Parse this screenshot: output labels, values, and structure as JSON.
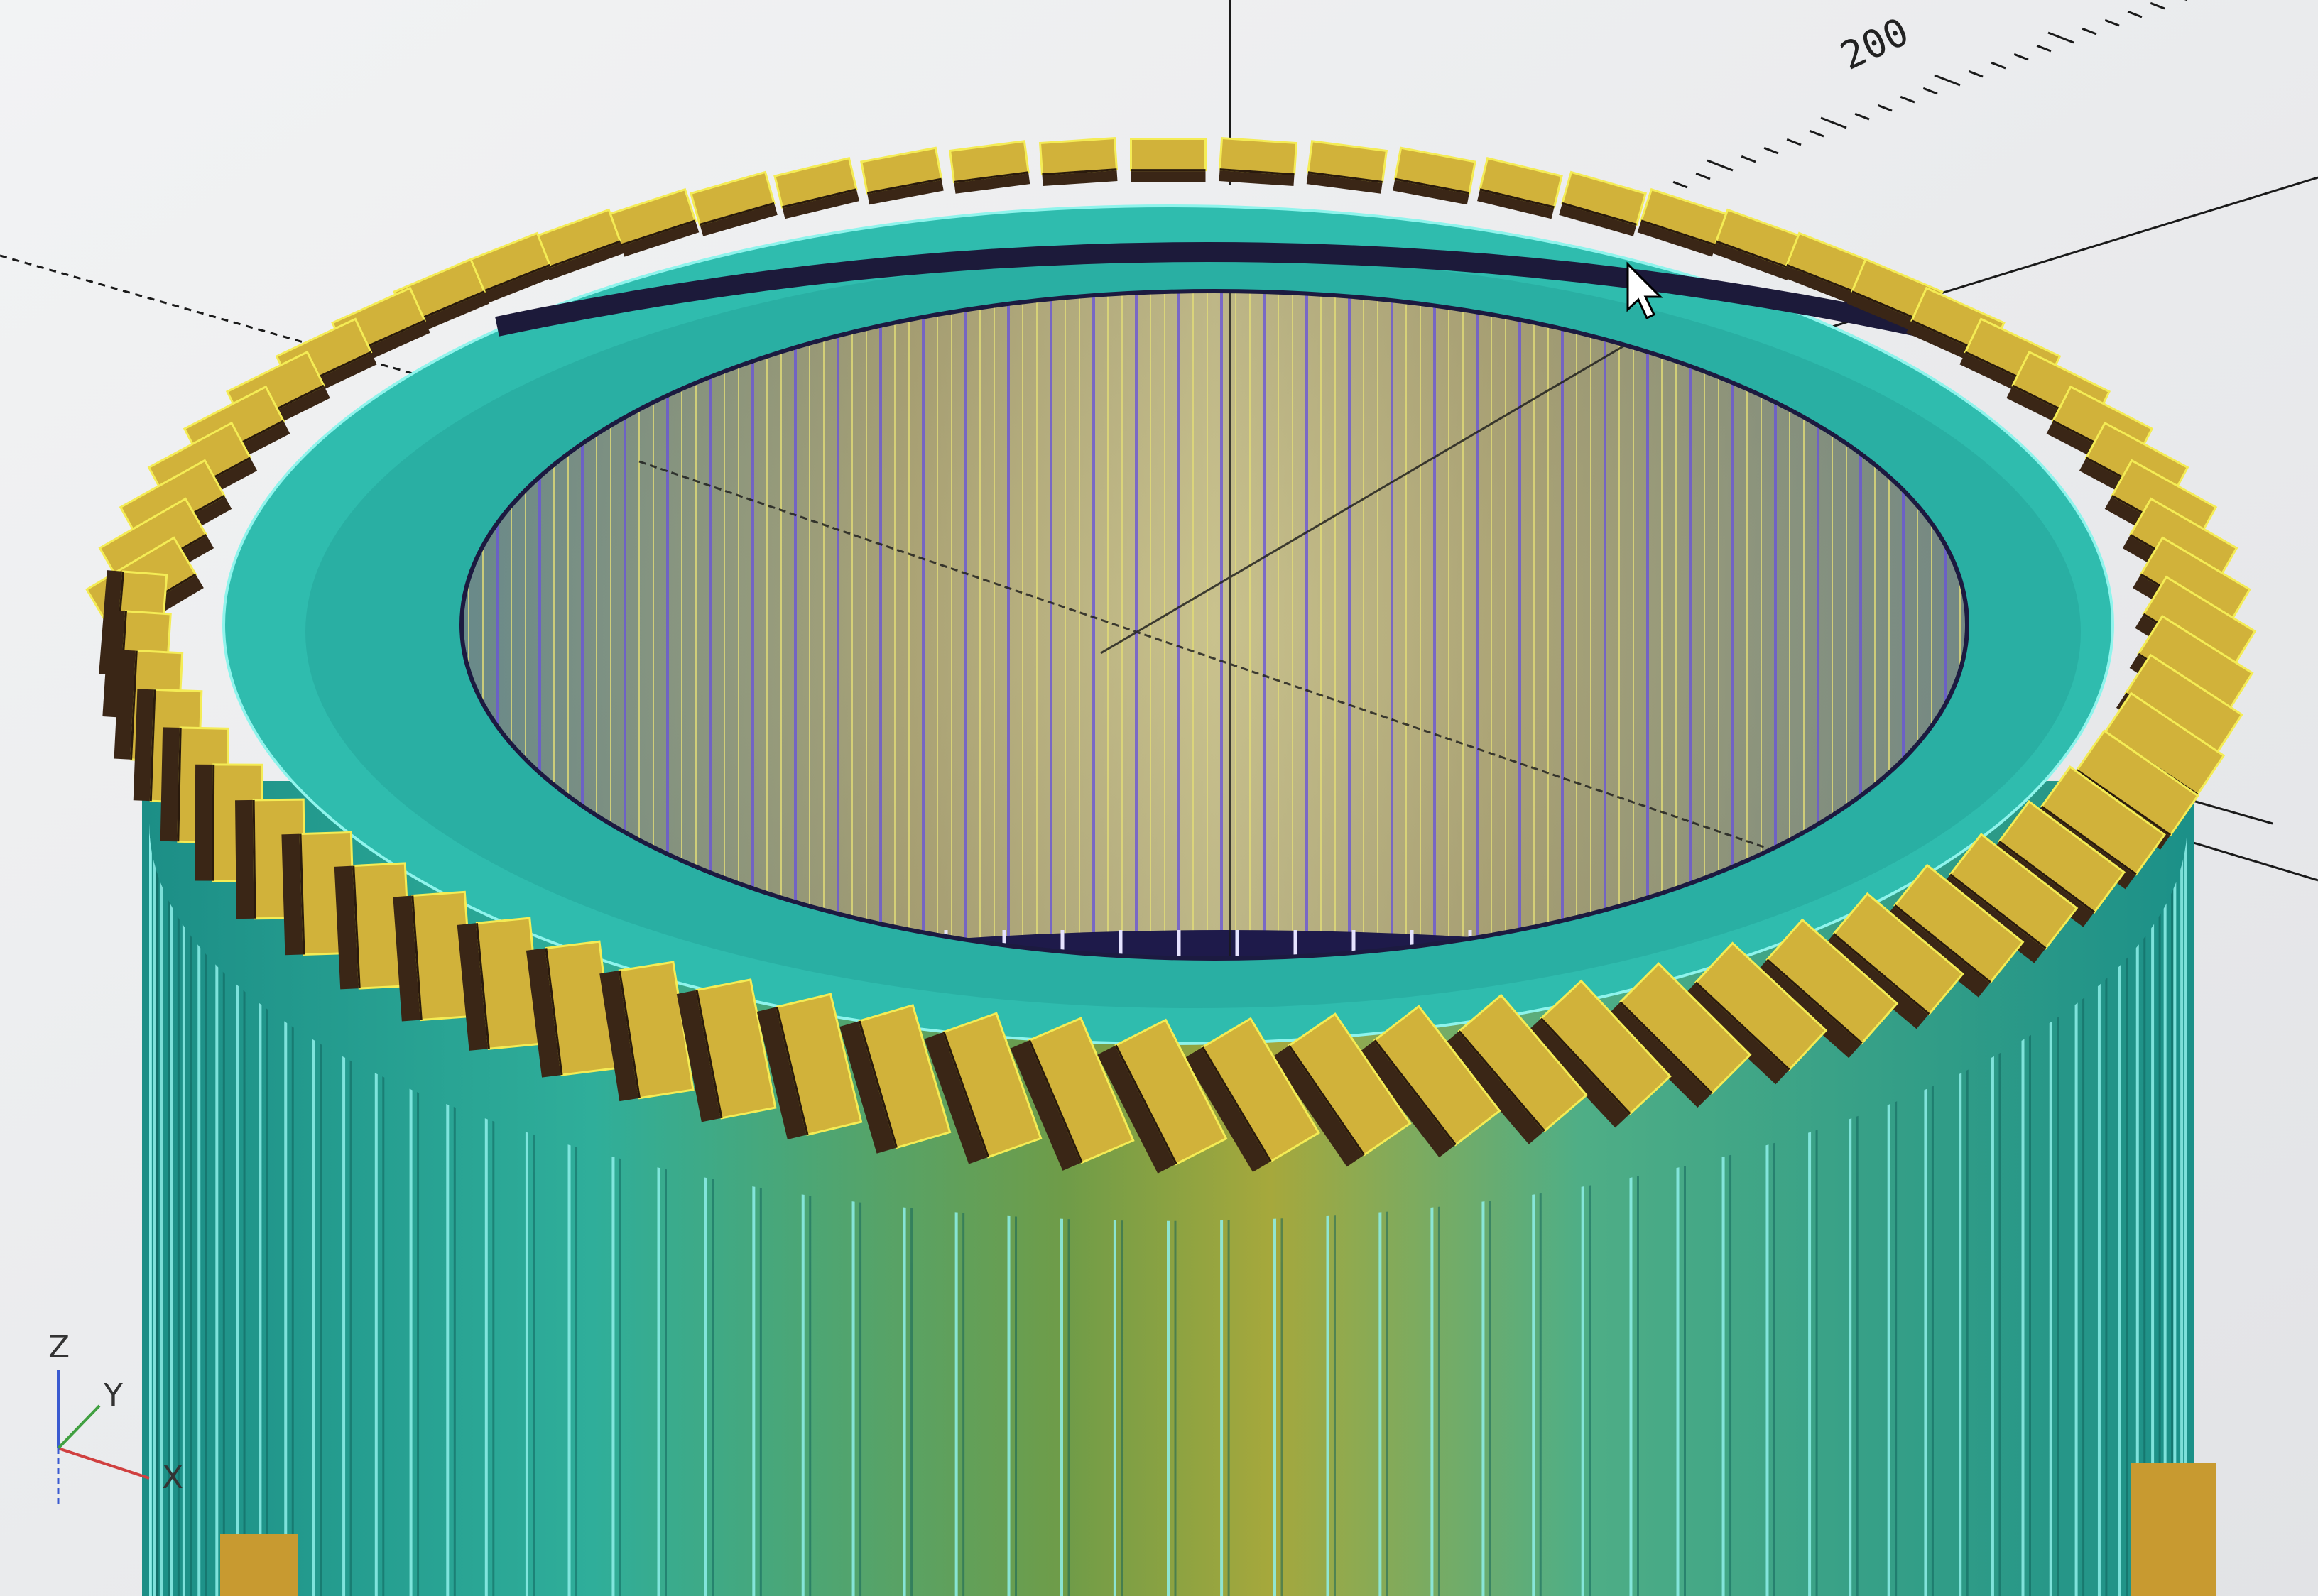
{
  "viewport": {
    "scale_marker": "200",
    "axes_gizmo": {
      "z_label": "Z",
      "y_label": "Y",
      "x_label": "X"
    },
    "colors": {
      "background": "#e9eaec",
      "magnet": "#d1b23a",
      "magnet_side": "#3a2616",
      "magnet_edge": "#f4ec55",
      "ring": "#33c4b4",
      "ring_edge": "#7ff2ea",
      "winding": "#b8b03a",
      "winding_line": "#6a57d6",
      "axis_line": "#111111"
    },
    "scene": {
      "magnet_count": 72,
      "stator_slot_count": 60
    }
  },
  "cursor": {
    "icon": "arrow-cursor-icon"
  }
}
